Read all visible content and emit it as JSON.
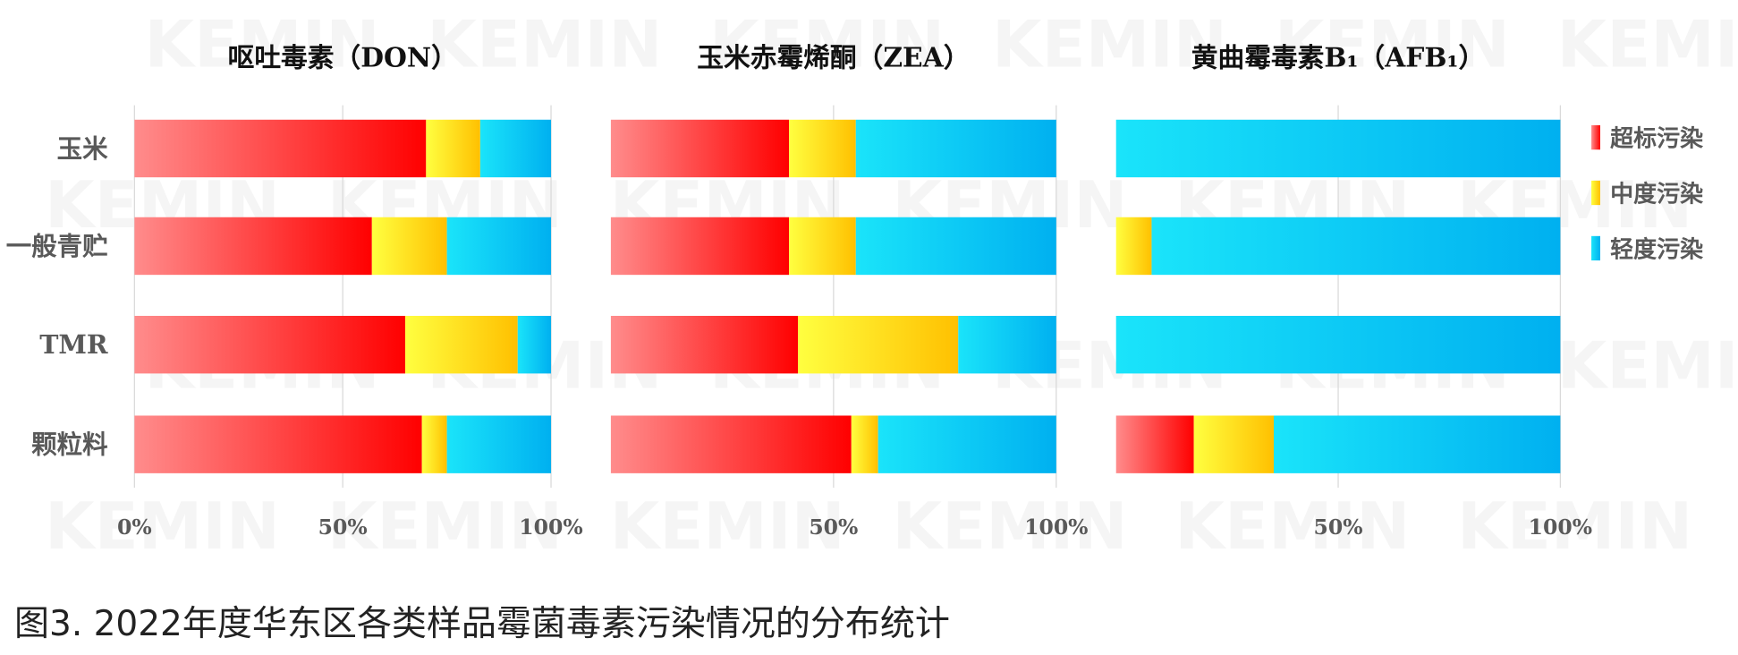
{
  "watermark": "KEMIN",
  "caption": "图3. 2022年度华东区各类样品霉菌毒素污染情况的分布统计",
  "chart_data": [
    {
      "type": "bar",
      "orientation": "horizontal",
      "stacked": "percent",
      "title": "呕吐毒素（DON）",
      "categories": [
        "玉米",
        "一般青贮",
        "TMR",
        "颗粒料"
      ],
      "series": [
        {
          "name": "超标污染",
          "values": [
            70,
            57,
            65,
            69
          ]
        },
        {
          "name": "中度污染",
          "values": [
            13,
            18,
            27,
            6
          ]
        },
        {
          "name": "轻度污染",
          "values": [
            17,
            25,
            8,
            25
          ]
        }
      ],
      "xticks": [
        "0%",
        "50%",
        "100%"
      ],
      "xlim": [
        0,
        100
      ],
      "grid": true
    },
    {
      "type": "bar",
      "orientation": "horizontal",
      "stacked": "percent",
      "title": "玉米赤霉烯酮（ZEA）",
      "categories": [
        "玉米",
        "一般青贮",
        "TMR",
        "颗粒料"
      ],
      "series": [
        {
          "name": "超标污染",
          "values": [
            40,
            40,
            42,
            54
          ]
        },
        {
          "name": "中度污染",
          "values": [
            15,
            15,
            36,
            6
          ]
        },
        {
          "name": "轻度污染",
          "values": [
            45,
            45,
            22,
            40
          ]
        }
      ],
      "xticks": [
        "",
        "50%",
        "100%"
      ],
      "xlim": [
        0,
        100
      ],
      "grid": true
    },
    {
      "type": "bar",
      "orientation": "horizontal",
      "stacked": "percent",
      "title": "黄曲霉毒素B₁（AFB₁）",
      "categories": [
        "玉米",
        "一般青贮",
        "TMR",
        "颗粒料"
      ],
      "series": [
        {
          "name": "超标污染",
          "values": [
            0,
            0,
            0,
            17.5
          ]
        },
        {
          "name": "中度污染",
          "values": [
            0,
            8,
            0,
            18
          ]
        },
        {
          "name": "轻度污染",
          "values": [
            100,
            92,
            100,
            64.5
          ]
        }
      ],
      "xticks": [
        "",
        "50%",
        "100%"
      ],
      "xlim": [
        0,
        100
      ],
      "grid": true
    }
  ],
  "legend": {
    "placement": "right",
    "items": [
      "超标污染",
      "中度污染",
      "轻度污染"
    ]
  },
  "colors": {
    "超标污染": [
      "#ff8c8c",
      "#ff0000"
    ],
    "中度污染": [
      "#ffff40",
      "#ffc000"
    ],
    "轻度污染": [
      "#1ae4fa",
      "#00b0f0"
    ],
    "grid": "#d9d9d9",
    "text": "#595959"
  }
}
